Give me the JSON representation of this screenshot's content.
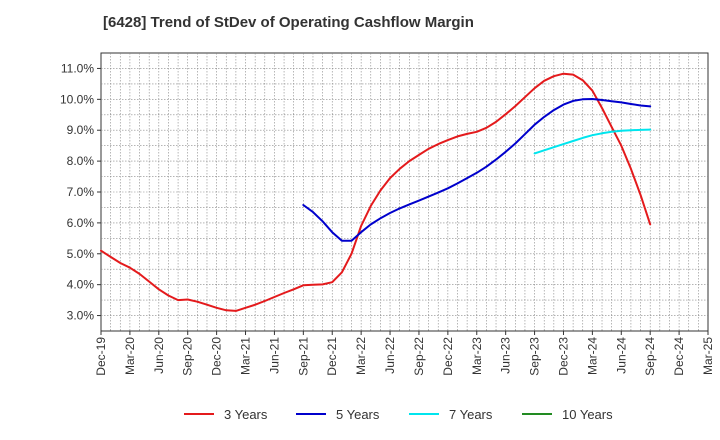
{
  "chart_data": {
    "type": "line",
    "title": "[6428]  Trend of StDev of Operating Cashflow Margin",
    "x_ticks": [
      "Dec-19",
      "Mar-20",
      "Jun-20",
      "Sep-20",
      "Dec-20",
      "Mar-21",
      "Jun-21",
      "Sep-21",
      "Dec-21",
      "Mar-22",
      "Jun-22",
      "Sep-22",
      "Dec-22",
      "Mar-23",
      "Jun-23",
      "Sep-23",
      "Dec-23",
      "Mar-24",
      "Jun-24",
      "Sep-24",
      "Dec-24",
      "Mar-25"
    ],
    "y_ticks": [
      "3.0%",
      "4.0%",
      "5.0%",
      "6.0%",
      "7.0%",
      "8.0%",
      "9.0%",
      "10.0%",
      "11.0%"
    ],
    "ylim": [
      2.5,
      11.5
    ],
    "grid": true,
    "legend_position": "bottom",
    "series": [
      {
        "name": "3 Years",
        "color": "#e41a1c",
        "x": [
          "Dec-19",
          "Jan-20",
          "Feb-20",
          "Mar-20",
          "Apr-20",
          "May-20",
          "Jun-20",
          "Jul-20",
          "Aug-20",
          "Sep-20",
          "Oct-20",
          "Nov-20",
          "Dec-20",
          "Jan-21",
          "Feb-21",
          "Mar-21",
          "Apr-21",
          "May-21",
          "Jun-21",
          "Jul-21",
          "Aug-21",
          "Sep-21",
          "Oct-21",
          "Nov-21",
          "Dec-21",
          "Jan-22",
          "Feb-22",
          "Mar-22",
          "Apr-22",
          "May-22",
          "Jun-22",
          "Jul-22",
          "Aug-22",
          "Sep-22",
          "Oct-22",
          "Nov-22",
          "Dec-22",
          "Jan-23",
          "Feb-23",
          "Mar-23",
          "Apr-23",
          "May-23",
          "Jun-23",
          "Jul-23",
          "Aug-23",
          "Sep-23",
          "Oct-23",
          "Nov-23",
          "Dec-23",
          "Jan-24",
          "Feb-24",
          "Mar-24",
          "Apr-24",
          "May-24",
          "Jun-24",
          "Jul-24",
          "Aug-24",
          "Sep-24"
        ],
        "values": [
          5.1,
          4.9,
          4.7,
          4.55,
          4.35,
          4.1,
          3.85,
          3.65,
          3.5,
          3.52,
          3.45,
          3.35,
          3.25,
          3.17,
          3.15,
          3.25,
          3.35,
          3.47,
          3.6,
          3.73,
          3.85,
          3.98,
          4.0,
          4.01,
          4.08,
          4.4,
          5.0,
          5.9,
          6.55,
          7.05,
          7.45,
          7.75,
          8.0,
          8.2,
          8.4,
          8.55,
          8.68,
          8.8,
          8.88,
          8.95,
          9.08,
          9.27,
          9.52,
          9.78,
          10.07,
          10.36,
          10.6,
          10.75,
          10.83,
          10.8,
          10.62,
          10.28,
          9.72,
          9.1,
          8.5,
          7.75,
          6.9,
          5.95
        ]
      },
      {
        "name": "5 Years",
        "color": "#0000cc",
        "x": [
          "Sep-21",
          "Oct-21",
          "Nov-21",
          "Dec-21",
          "Jan-22",
          "Feb-22",
          "Mar-22",
          "Apr-22",
          "May-22",
          "Jun-22",
          "Jul-22",
          "Aug-22",
          "Sep-22",
          "Oct-22",
          "Nov-22",
          "Dec-22",
          "Jan-23",
          "Feb-23",
          "Mar-23",
          "Apr-23",
          "May-23",
          "Jun-23",
          "Jul-23",
          "Aug-23",
          "Sep-23",
          "Oct-23",
          "Nov-23",
          "Dec-23",
          "Jan-24",
          "Feb-24",
          "Mar-24",
          "Apr-24",
          "May-24",
          "Jun-24",
          "Jul-24",
          "Aug-24",
          "Sep-24"
        ],
        "values": [
          6.58,
          6.35,
          6.05,
          5.7,
          5.42,
          5.42,
          5.7,
          5.95,
          6.15,
          6.32,
          6.47,
          6.6,
          6.72,
          6.85,
          6.98,
          7.12,
          7.28,
          7.45,
          7.62,
          7.82,
          8.05,
          8.3,
          8.57,
          8.87,
          9.18,
          9.43,
          9.65,
          9.83,
          9.95,
          10.0,
          10.01,
          9.98,
          9.94,
          9.9,
          9.85,
          9.8,
          9.77
        ]
      },
      {
        "name": "7 Years",
        "color": "#00e5ee",
        "x": [
          "Sep-23",
          "Oct-23",
          "Nov-23",
          "Dec-23",
          "Jan-24",
          "Feb-24",
          "Mar-24",
          "Apr-24",
          "May-24",
          "Jun-24",
          "Jul-24",
          "Aug-24",
          "Sep-24"
        ],
        "values": [
          8.25,
          8.35,
          8.45,
          8.55,
          8.65,
          8.75,
          8.84,
          8.9,
          8.95,
          8.98,
          9.0,
          9.01,
          9.02
        ]
      },
      {
        "name": "10 Years",
        "color": "#228b22",
        "x": [],
        "values": []
      }
    ]
  }
}
